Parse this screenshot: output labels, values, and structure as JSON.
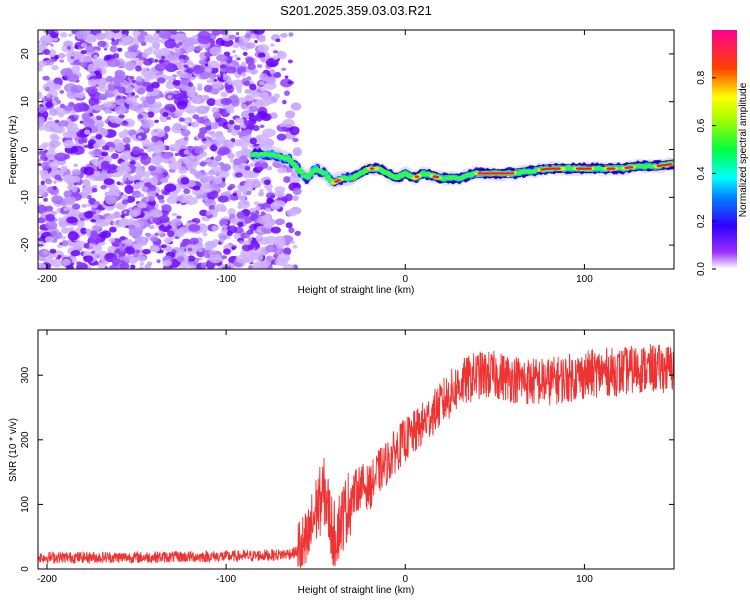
{
  "title": "S201.2025.359.03.03.R21",
  "chart_data": [
    {
      "type": "heatmap",
      "xlabel": "Height of straight line (km)",
      "ylabel": "Frequency (Hz)",
      "xlim": [
        -205,
        150
      ],
      "ylim": [
        -25,
        25
      ],
      "xticks": [
        -200,
        -100,
        0,
        100
      ],
      "yticks": [
        -20,
        -10,
        0,
        10,
        20
      ],
      "colorbar": {
        "label": "Normalized spectral amplitude",
        "range": [
          0,
          1
        ],
        "ticks": [
          "0.0",
          "0.2",
          "0.4",
          "0.6",
          "0.8"
        ],
        "colormap": [
          "#ffffff",
          "#8000ff",
          "#0000ff",
          "#00ffff",
          "#00ff00",
          "#ffff00",
          "#ff0000",
          "#ff00a0"
        ]
      },
      "noise_region_x": [
        -205,
        -60
      ],
      "ridge": {
        "x": [
          -85,
          -75,
          -65,
          -60,
          -55,
          -50,
          -45,
          -40,
          -35,
          -30,
          -25,
          -20,
          -15,
          -10,
          -5,
          0,
          5,
          10,
          20,
          30,
          40,
          50,
          60,
          70,
          80,
          90,
          100,
          110,
          120,
          130,
          140,
          150
        ],
        "freq": [
          -1,
          -1,
          -2,
          -4,
          -6,
          -4,
          -5,
          -7,
          -6,
          -6,
          -5,
          -4,
          -4,
          -5,
          -6,
          -5,
          -6,
          -5,
          -6,
          -6,
          -5,
          -5,
          -5,
          -4.5,
          -4,
          -4,
          -4,
          -4,
          -4,
          -3.5,
          -3.5,
          -3
        ]
      }
    },
    {
      "type": "line",
      "xlabel": "Height of straight line (km)",
      "ylabel": "SNR (10 * v/v)",
      "xlim": [
        -205,
        150
      ],
      "ylim": [
        0,
        370
      ],
      "xticks": [
        -200,
        -100,
        0,
        100
      ],
      "yticks": [
        0,
        100,
        200,
        300
      ],
      "series": [
        {
          "name": "SNR",
          "color": "#ee3333",
          "x": [
            -205,
            -180,
            -150,
            -120,
            -90,
            -70,
            -62,
            -55,
            -50,
            -45,
            -40,
            -35,
            -30,
            -25,
            -20,
            -15,
            -10,
            -5,
            0,
            5,
            10,
            15,
            20,
            25,
            30,
            40,
            50,
            60,
            70,
            80,
            90,
            100,
            110,
            120,
            130,
            140,
            150
          ],
          "y": [
            18,
            18,
            18,
            19,
            20,
            22,
            25,
            35,
            90,
            120,
            50,
            80,
            110,
            130,
            125,
            150,
            165,
            185,
            200,
            210,
            225,
            240,
            255,
            270,
            285,
            300,
            300,
            295,
            290,
            290,
            295,
            300,
            305,
            305,
            310,
            310,
            310
          ]
        }
      ]
    }
  ]
}
